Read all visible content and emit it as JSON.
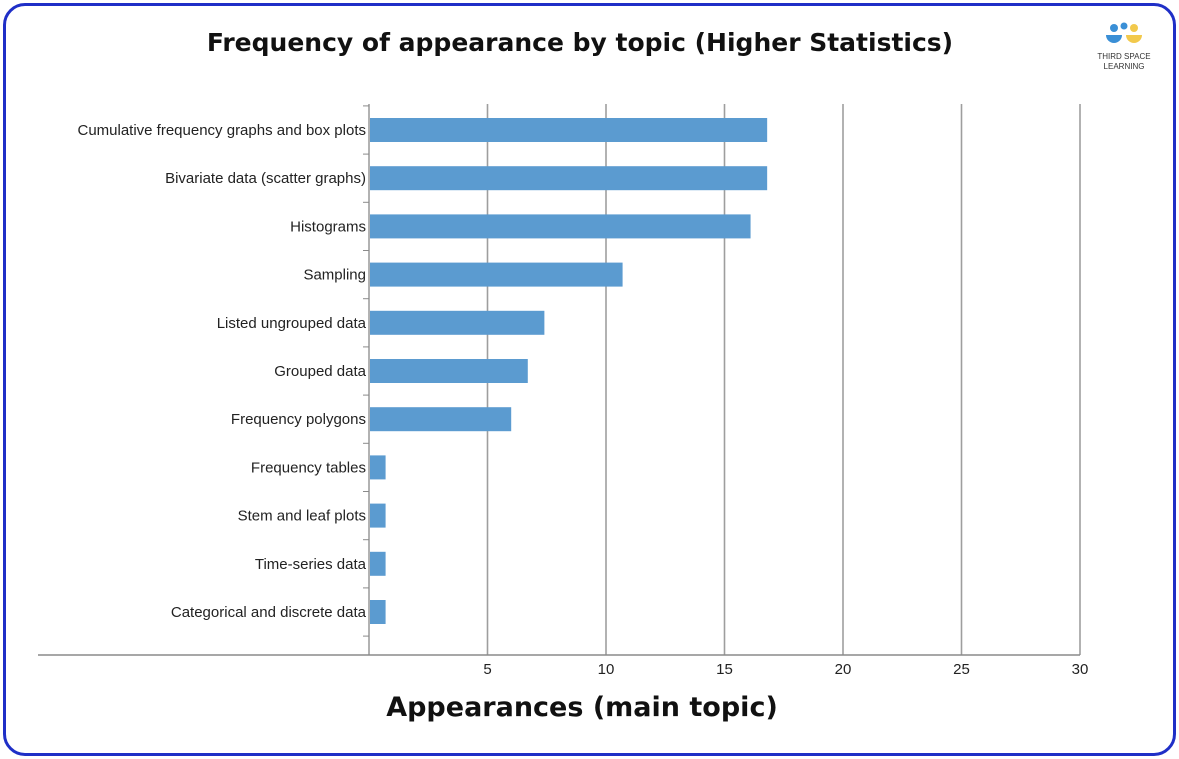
{
  "chart_data": {
    "type": "bar",
    "orientation": "horizontal",
    "title": "Frequency of appearance by topic (Higher Statistics)",
    "xlabel": "Appearances (main topic)",
    "ylabel": "",
    "xlim": [
      0,
      30
    ],
    "xticks": [
      5,
      10,
      15,
      20,
      25,
      30
    ],
    "grid": "vertical",
    "bar_color": "#5b9bd0",
    "categories": [
      "Cumulative frequency graphs and box plots",
      "Bivariate data (scatter graphs)",
      "Histograms",
      "Sampling",
      "Listed ungrouped data",
      "Grouped data",
      "Frequency polygons",
      "Frequency tables",
      "Stem and leaf plots",
      "Time-series data",
      "Categorical and discrete data"
    ],
    "values": [
      16.8,
      16.8,
      16.1,
      10.7,
      7.4,
      6.7,
      6.0,
      0.7,
      0.7,
      0.7,
      0.7
    ]
  },
  "logo": {
    "line1": "THIRD SPACE",
    "line2": "LEARNING",
    "colors": {
      "blue": "#3a8fd6",
      "yellow": "#f2c94c"
    }
  },
  "theme": {
    "border": "#1f2fc7",
    "grid": "#9e9e9e",
    "axis": "#8a8a8a"
  }
}
